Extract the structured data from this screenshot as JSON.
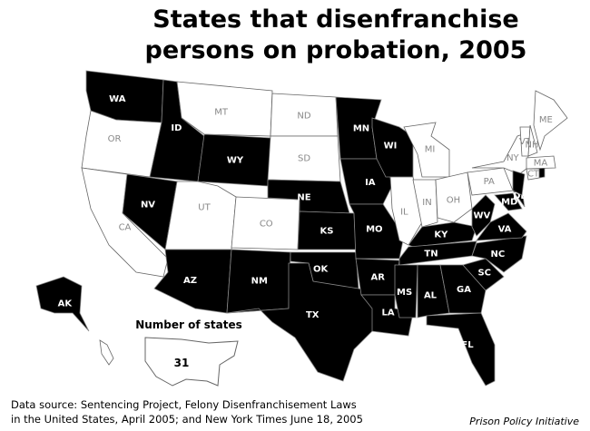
{
  "title": [
    "States that disenfranchise",
    "persons on probation, 2005"
  ],
  "states": [
    {
      "label": "WA",
      "fill": "#000000"
    },
    {
      "label": "OR",
      "fill": "#ffffff"
    },
    {
      "label": "CA",
      "fill": "#ffffff"
    },
    {
      "label": "NV",
      "fill": "#000000"
    },
    {
      "label": "ID",
      "fill": "#000000"
    },
    {
      "label": "MT",
      "fill": "#ffffff"
    },
    {
      "label": "WY",
      "fill": "#000000"
    },
    {
      "label": "UT",
      "fill": "#ffffff"
    },
    {
      "label": "CO",
      "fill": "#ffffff"
    },
    {
      "label": "AZ",
      "fill": "#000000"
    },
    {
      "label": "NM",
      "fill": "#000000"
    },
    {
      "label": "ND",
      "fill": "#ffffff"
    },
    {
      "label": "SD",
      "fill": "#ffffff"
    },
    {
      "label": "NE",
      "fill": "#000000"
    },
    {
      "label": "KS",
      "fill": "#000000"
    },
    {
      "label": "OK",
      "fill": "#000000"
    },
    {
      "label": "TX",
      "fill": "#000000"
    },
    {
      "label": "MN",
      "fill": "#000000"
    },
    {
      "label": "IA",
      "fill": "#000000"
    },
    {
      "label": "MO",
      "fill": "#000000"
    },
    {
      "label": "AR",
      "fill": "#000000"
    },
    {
      "label": "LA",
      "fill": "#000000"
    },
    {
      "label": "WI",
      "fill": "#000000"
    },
    {
      "label": "MI",
      "fill": "#ffffff"
    },
    {
      "label": "IL",
      "fill": "#ffffff"
    },
    {
      "label": "IN",
      "fill": "#ffffff"
    },
    {
      "label": "OH",
      "fill": "#ffffff"
    },
    {
      "label": "KY",
      "fill": "#000000"
    },
    {
      "label": "TN",
      "fill": "#000000"
    },
    {
      "label": "MS",
      "fill": "#000000"
    },
    {
      "label": "AL",
      "fill": "#000000"
    },
    {
      "label": "GA",
      "fill": "#000000"
    },
    {
      "label": "FL",
      "fill": "#000000"
    },
    {
      "label": "SC",
      "fill": "#000000"
    },
    {
      "label": "NC",
      "fill": "#000000"
    },
    {
      "label": "VA",
      "fill": "#000000"
    },
    {
      "label": "WV",
      "fill": "#000000"
    },
    {
      "label": "PA",
      "fill": "#ffffff"
    },
    {
      "label": "NY",
      "fill": "#ffffff"
    },
    {
      "label": "MD",
      "fill": "#000000"
    },
    {
      "label": "DE",
      "fill": "#000000"
    },
    {
      "fill": "#000000"
    },
    {
      "label": "CT",
      "fill": "#ffffff"
    },
    {
      "fill": "#000000"
    },
    {
      "label": "MA",
      "fill": "#ffffff"
    },
    {
      "label": "VT",
      "fill": "#ffffff"
    },
    {
      "label": "NH",
      "fill": "#ffffff"
    },
    {
      "label": "ME",
      "fill": "#ffffff"
    },
    {
      "label": "AK",
      "fill": "#000000"
    },
    {
      "fill": "#ffffff"
    }
  ],
  "legend": {
    "title": "Number of states",
    "value": 31
  },
  "source": [
    "Data source: Sentencing Project, Felony Disenfranchisement Laws",
    "in the United States, April 2005; and New York Times June 18, 2005"
  ],
  "credit": "Prison Policy Initiative"
}
